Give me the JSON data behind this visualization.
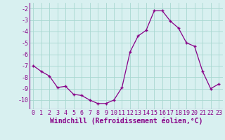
{
  "hours": [
    0,
    1,
    2,
    3,
    4,
    5,
    6,
    7,
    8,
    9,
    10,
    11,
    12,
    13,
    14,
    15,
    16,
    17,
    18,
    19,
    20,
    21,
    22,
    23
  ],
  "values": [
    -7.0,
    -7.5,
    -7.9,
    -8.9,
    -8.8,
    -9.5,
    -9.6,
    -10.0,
    -10.3,
    -10.3,
    -10.0,
    -8.9,
    -5.8,
    -4.4,
    -3.9,
    -2.2,
    -2.2,
    -3.1,
    -3.7,
    -5.0,
    -5.3,
    -7.5,
    -9.0,
    -8.6
  ],
  "line_color": "#880088",
  "marker": "+",
  "bg_color": "#d8f0f0",
  "grid_color": "#a8d8d0",
  "xlabel": "Windchill (Refroidissement éolien,°C)",
  "xlabel_fontsize": 7,
  "tick_fontsize": 6,
  "ylim": [
    -10.8,
    -1.5
  ],
  "yticks": [
    -10,
    -9,
    -8,
    -7,
    -6,
    -5,
    -4,
    -3,
    -2
  ],
  "xlim": [
    -0.5,
    23.5
  ]
}
